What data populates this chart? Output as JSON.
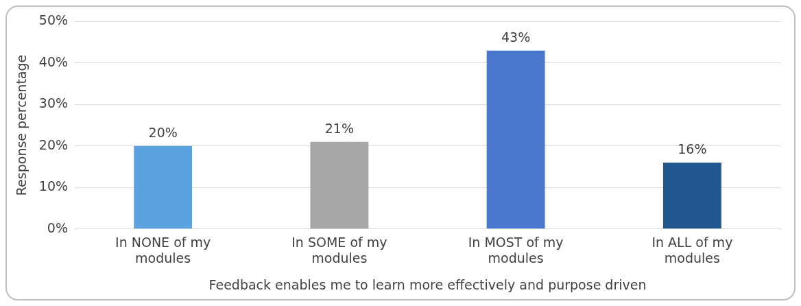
{
  "chart_data": {
    "type": "bar",
    "xlabel": "Feedback enables me to learn more effectively and purpose driven",
    "ylabel": "Response percentage",
    "categories": [
      "In NONE of my modules",
      "In SOME of my modules",
      "In MOST of my modules",
      "In ALL of my modules"
    ],
    "values": [
      20,
      21,
      43,
      16
    ],
    "colors": [
      "#5ba3e0",
      "#a6a6a6",
      "#4a78cc",
      "#23578f"
    ],
    "value_labels": [
      "20%",
      "21%",
      "43%",
      "16%"
    ],
    "ylim": [
      0,
      50
    ],
    "yticks": [
      {
        "value": 0,
        "label": "0%"
      },
      {
        "value": 10,
        "label": "10%"
      },
      {
        "value": 20,
        "label": "20%"
      },
      {
        "value": 30,
        "label": "30%"
      },
      {
        "value": 40,
        "label": "40%"
      },
      {
        "value": 50,
        "label": "50%"
      }
    ],
    "grid": "y",
    "legend": false
  }
}
